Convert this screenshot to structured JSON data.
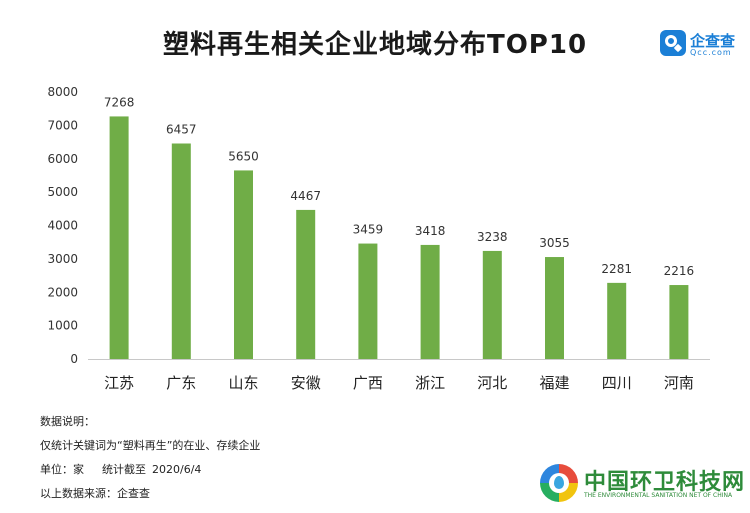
{
  "chart_data": {
    "type": "bar",
    "title": "塑料再生相关企业地域分布TOP10",
    "categories": [
      "江苏",
      "广东",
      "山东",
      "安徽",
      "广西",
      "浙江",
      "河北",
      "福建",
      "四川",
      "河南"
    ],
    "values": [
      7268,
      6457,
      5650,
      4467,
      3459,
      3418,
      3238,
      3055,
      2281,
      2216
    ],
    "ylim": [
      0,
      8000
    ],
    "yticks": [
      0,
      1000,
      2000,
      3000,
      4000,
      5000,
      6000,
      7000,
      8000
    ],
    "grid": false,
    "bar_color": "#70ad47"
  },
  "logo": {
    "name": "企查查",
    "domain": "Qcc.com",
    "color": "#1b7fd6"
  },
  "notes": {
    "heading": "数据说明：",
    "scope": "仅统计关键词为“塑料再生”的在业、存续企业",
    "unit": "单位：家",
    "stat_label": "统计截至",
    "stat_date": "2020/6/4",
    "source": "以上数据来源：企查查"
  },
  "brand": {
    "name": "中国环卫科技网",
    "subtitle": "THE ENVIRONMENTAL SANITATION NET OF CHINA"
  }
}
